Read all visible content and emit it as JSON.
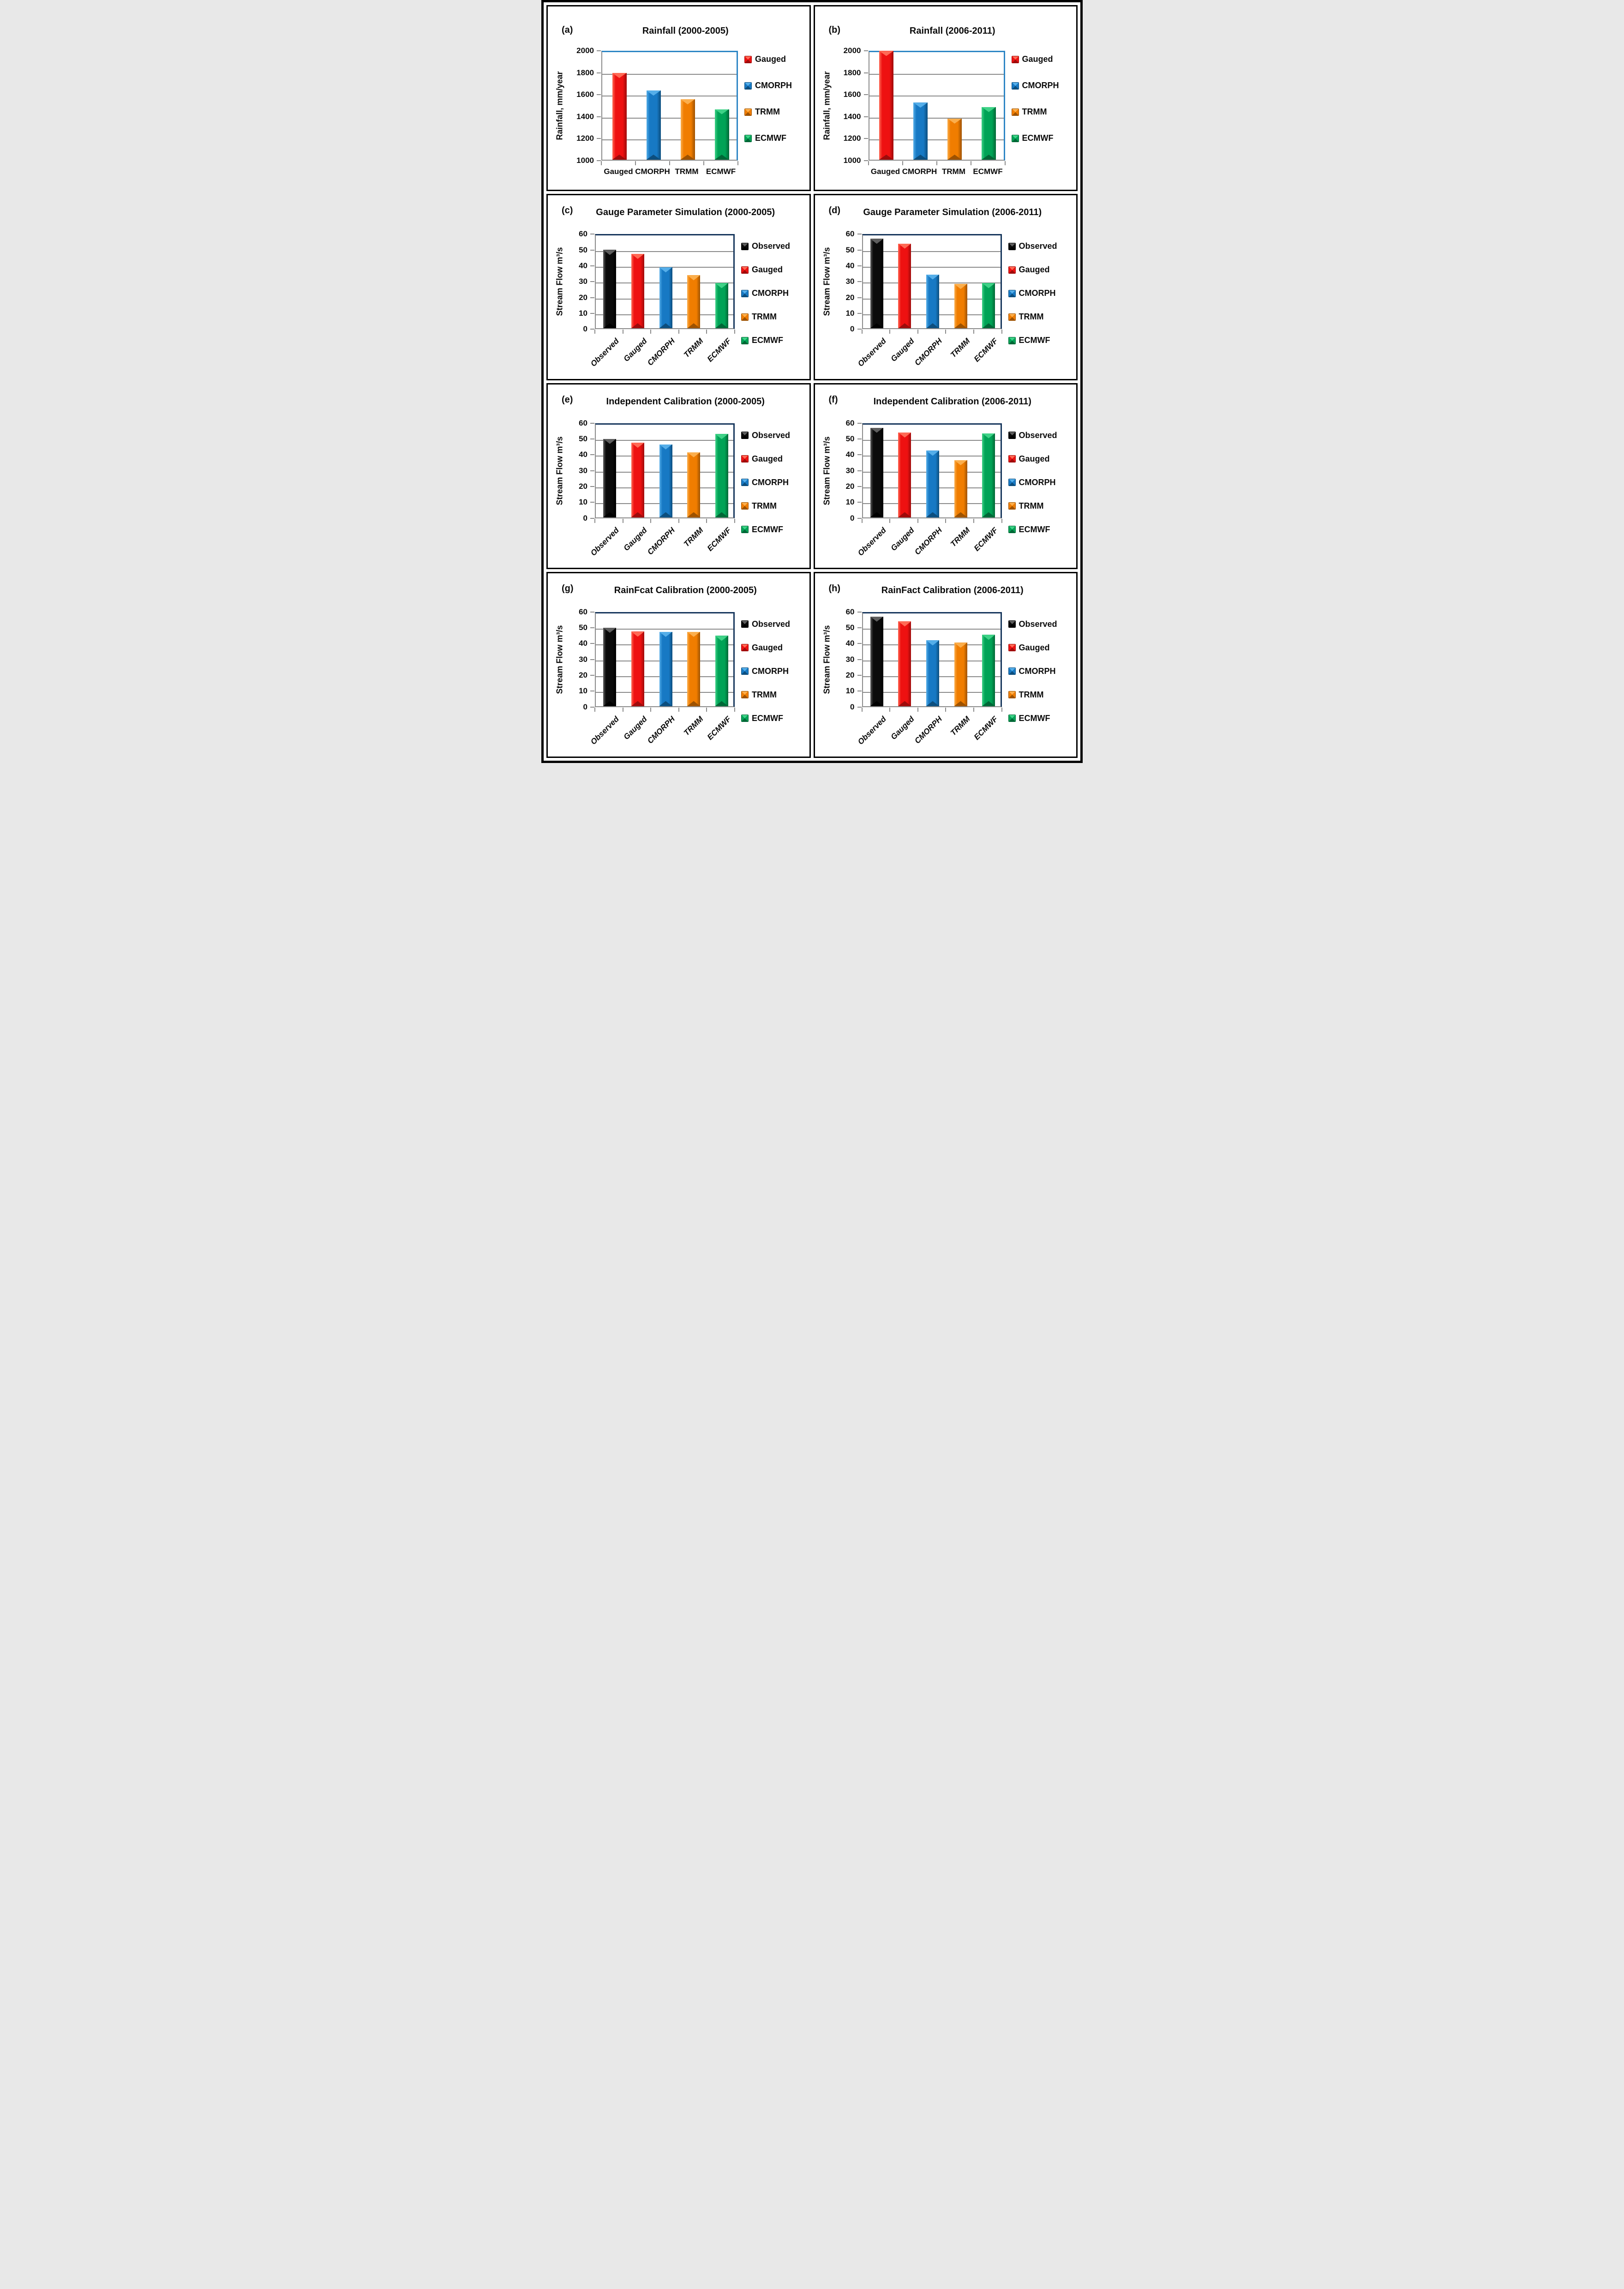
{
  "figure": {
    "description": "Eight-panel bar chart figure comparing rainfall products and simulated stream flow",
    "outer_border_color": "#000000",
    "grid_color": "#8a8a8a"
  },
  "palette": {
    "black": {
      "base": "#0b0b0b",
      "light": "#5e5e5e",
      "dark": "#000000"
    },
    "red": {
      "base": "#ee1111",
      "light": "#ff6a55",
      "dark": "#9e0b0b"
    },
    "blue": {
      "base": "#1779c4",
      "light": "#55aee9",
      "dark": "#0c4e7e"
    },
    "orange": {
      "base": "#f07d00",
      "light": "#fbae4c",
      "dark": "#9e5200"
    },
    "green": {
      "base": "#00a356",
      "light": "#3fd287",
      "dark": "#006736"
    }
  },
  "chart_data": [
    {
      "id": "a",
      "type": "bar",
      "panel_label": "(a)",
      "title": "Rainfall  (2000-2005)",
      "ylabel": "Rainfall, mm/year",
      "ylim": [
        1000,
        2000
      ],
      "ystep": 200,
      "yticks": [
        1000,
        1200,
        1400,
        1600,
        1800,
        2000
      ],
      "categories": [
        "Gauged",
        "CMORPH",
        "TRMM",
        "ECMWF"
      ],
      "values": [
        1790,
        1630,
        1550,
        1460
      ],
      "series_colors": [
        "red",
        "blue",
        "orange",
        "green"
      ],
      "legend": [
        "Gauged",
        "CMORPH",
        "TRMM",
        "ECMWF"
      ],
      "x_label_style": "horizontal",
      "plot_border": "#2e86c5"
    },
    {
      "id": "b",
      "type": "bar",
      "panel_label": "(b)",
      "title": "Rainfall (2006-2011)",
      "ylabel": "Rainfall, mm/year",
      "ylim": [
        1000,
        2000
      ],
      "ystep": 200,
      "yticks": [
        1000,
        1200,
        1400,
        1600,
        1800,
        2000
      ],
      "categories": [
        "Gauged",
        "CMORPH",
        "TRMM",
        "ECMWF"
      ],
      "values": [
        1990,
        1520,
        1375,
        1480
      ],
      "series_colors": [
        "red",
        "blue",
        "orange",
        "green"
      ],
      "legend": [
        "Gauged",
        "CMORPH",
        "TRMM",
        "ECMWF"
      ],
      "x_label_style": "horizontal",
      "plot_border": "#2e86c5"
    },
    {
      "id": "c",
      "type": "bar",
      "panel_label": "(c)",
      "title": "Gauge Parameter Simulation (2000-2005)",
      "ylabel": "Stream Flow m³/s",
      "ylim": [
        0,
        60
      ],
      "ystep": 10,
      "yticks": [
        0,
        10,
        20,
        30,
        40,
        50,
        60
      ],
      "categories": [
        "Observed",
        "Gauged",
        "CMORPH",
        "TRMM",
        "ECMWF"
      ],
      "values": [
        49.5,
        47,
        38.5,
        33.5,
        28.5
      ],
      "series_colors": [
        "black",
        "red",
        "blue",
        "orange",
        "green"
      ],
      "legend": [
        "Observed",
        "Gauged",
        "CMORPH",
        "TRMM",
        "ECMWF"
      ],
      "x_label_style": "rotated",
      "plot_border": "#16365c"
    },
    {
      "id": "d",
      "type": "bar",
      "panel_label": "(d)",
      "title": "Gauge Parameter Simulation (2006-2011)",
      "ylabel": "Stream Flow m³/s",
      "ylim": [
        0,
        60
      ],
      "ystep": 10,
      "yticks": [
        0,
        10,
        20,
        30,
        40,
        50,
        60
      ],
      "categories": [
        "Observed",
        "Gauged",
        "CMORPH",
        "TRMM",
        "ECMWF"
      ],
      "values": [
        56.5,
        53.5,
        34,
        28,
        28.5
      ],
      "series_colors": [
        "black",
        "red",
        "blue",
        "orange",
        "green"
      ],
      "legend": [
        "Observed",
        "Gauged",
        "CMORPH",
        "TRMM",
        "ECMWF"
      ],
      "x_label_style": "rotated",
      "plot_border": "#16365c"
    },
    {
      "id": "e",
      "type": "bar",
      "panel_label": "(e)",
      "title": "Independent Calibration (2000-2005)",
      "ylabel": "Stream Flow m³/s",
      "ylim": [
        0,
        60
      ],
      "ystep": 10,
      "yticks": [
        0,
        10,
        20,
        30,
        40,
        50,
        60
      ],
      "categories": [
        "Observed",
        "Gauged",
        "CMORPH",
        "TRMM",
        "ECMWF"
      ],
      "values": [
        49.5,
        47,
        46,
        41,
        52.5
      ],
      "series_colors": [
        "black",
        "red",
        "blue",
        "orange",
        "green"
      ],
      "legend": [
        "Observed",
        "Gauged",
        "CMORPH",
        "TRMM",
        "ECMWF"
      ],
      "x_label_style": "rotated",
      "plot_border": "#16365c"
    },
    {
      "id": "f",
      "type": "bar",
      "panel_label": "(f)",
      "title": "Independent Calibration (2006-2011)",
      "ylabel": "Stream Flow m³/s",
      "ylim": [
        0,
        60
      ],
      "ystep": 10,
      "yticks": [
        0,
        10,
        20,
        30,
        40,
        50,
        60
      ],
      "categories": [
        "Observed",
        "Gauged",
        "CMORPH",
        "TRMM",
        "ECMWF"
      ],
      "values": [
        56.5,
        53.5,
        42,
        36,
        53
      ],
      "series_colors": [
        "black",
        "red",
        "blue",
        "orange",
        "green"
      ],
      "legend": [
        "Observed",
        "Gauged",
        "CMORPH",
        "TRMM",
        "ECMWF"
      ],
      "x_label_style": "rotated",
      "plot_border": "#16365c"
    },
    {
      "id": "g",
      "type": "bar",
      "panel_label": "(g)",
      "title": "RainFcat Calibration (2000-2005)",
      "ylabel": "Stream Flow m³/s",
      "ylim": [
        0,
        60
      ],
      "ystep": 10,
      "yticks": [
        0,
        10,
        20,
        30,
        40,
        50,
        60
      ],
      "categories": [
        "Observed",
        "Gauged",
        "CMORPH",
        "TRMM",
        "ECMWF"
      ],
      "values": [
        49.5,
        47,
        46.9,
        46.9,
        44.4
      ],
      "series_colors": [
        "black",
        "red",
        "blue",
        "orange",
        "green"
      ],
      "legend": [
        "Observed",
        "Gauged",
        "CMORPH",
        "TRMM",
        "ECMWF"
      ],
      "x_label_style": "rotated",
      "plot_border": "#16365c"
    },
    {
      "id": "h",
      "type": "bar",
      "panel_label": "(h)",
      "title": "RainFact  Calibration (2006-2011)",
      "ylabel": "Stream Flow m³/s",
      "ylim": [
        0,
        60
      ],
      "ystep": 10,
      "yticks": [
        0,
        10,
        20,
        30,
        40,
        50,
        60
      ],
      "categories": [
        "Observed",
        "Gauged",
        "CMORPH",
        "TRMM",
        "ECMWF"
      ],
      "values": [
        56.5,
        53.5,
        41.5,
        40,
        45
      ],
      "series_colors": [
        "black",
        "red",
        "blue",
        "orange",
        "green"
      ],
      "legend": [
        "Observed",
        "Gauged",
        "CMORPH",
        "TRMM",
        "ECMWF"
      ],
      "x_label_style": "rotated",
      "plot_border": "#16365c"
    }
  ]
}
